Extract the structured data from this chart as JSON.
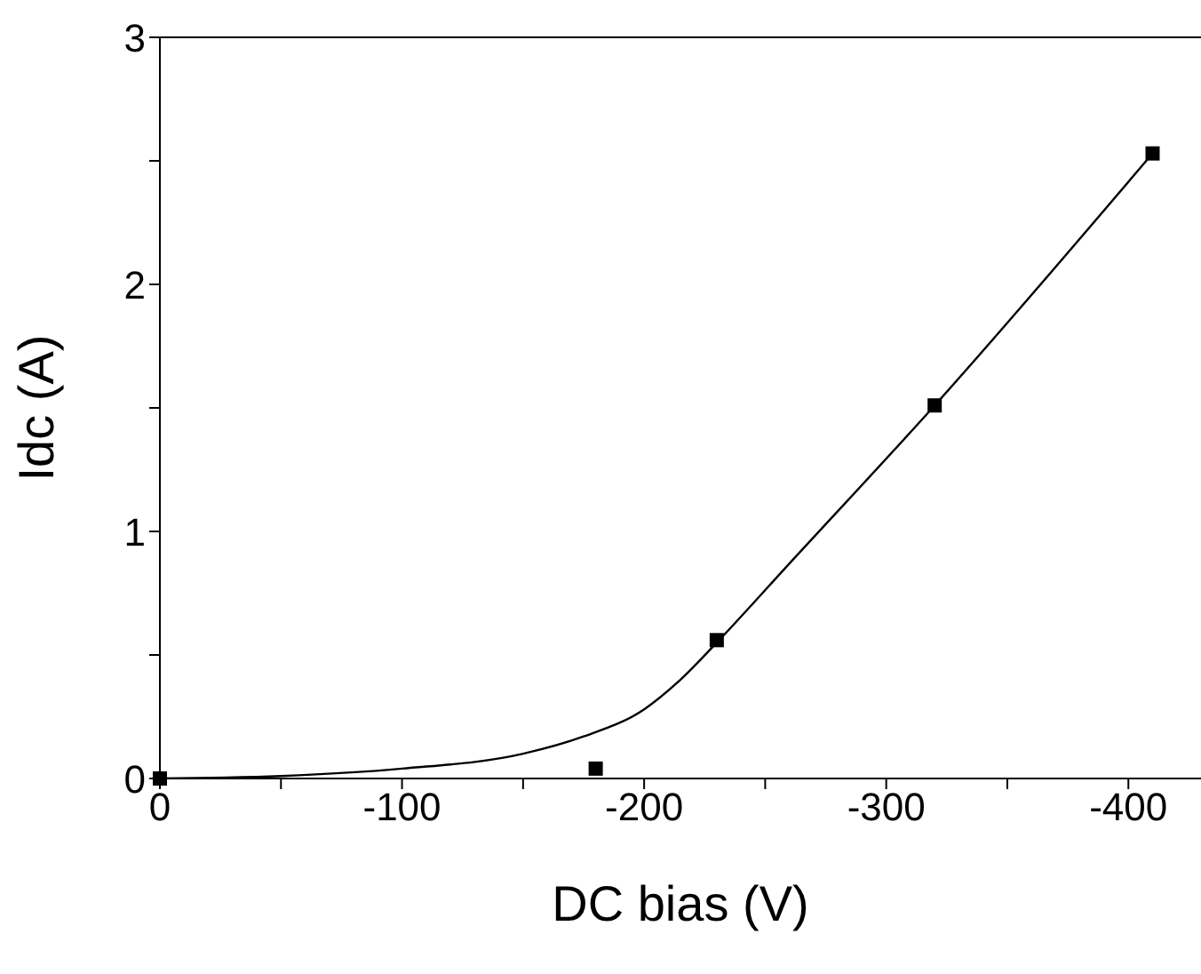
{
  "chart_data": {
    "type": "scatter",
    "xlabel": "DC bias (V)",
    "ylabel": "Idc (A)",
    "xlim": [
      0,
      -430
    ],
    "xticks": [
      0,
      {
        "value": -50,
        "label": null
      },
      -100,
      {
        "value": -150,
        "label": null
      },
      -200,
      {
        "value": -250,
        "label": null
      },
      -300,
      {
        "value": -350,
        "label": null
      },
      -400
    ],
    "ylim": [
      0,
      3
    ],
    "yticks": [
      0,
      {
        "value": 0.5,
        "label": null
      },
      1,
      {
        "value": 1.5,
        "label": null
      },
      2,
      {
        "value": 2.5,
        "label": null
      },
      3
    ],
    "grid": false,
    "series": [
      {
        "type": "line",
        "color": "#000000",
        "marker": "none",
        "line_style": "solid",
        "x": [
          0,
          -50,
          -100,
          -150,
          -175,
          -200,
          -215,
          -230,
          -260,
          -320,
          -410
        ],
        "values": [
          0,
          0.01,
          0.04,
          0.1,
          0.17,
          0.28,
          0.4,
          0.55,
          0.87,
          1.51,
          2.53
        ]
      },
      {
        "color": "#000000",
        "marker": "square",
        "x": [
          0,
          -180,
          -230,
          -320,
          -410
        ],
        "values": [
          0,
          0.04,
          0.56,
          1.51,
          2.53
        ]
      }
    ]
  }
}
